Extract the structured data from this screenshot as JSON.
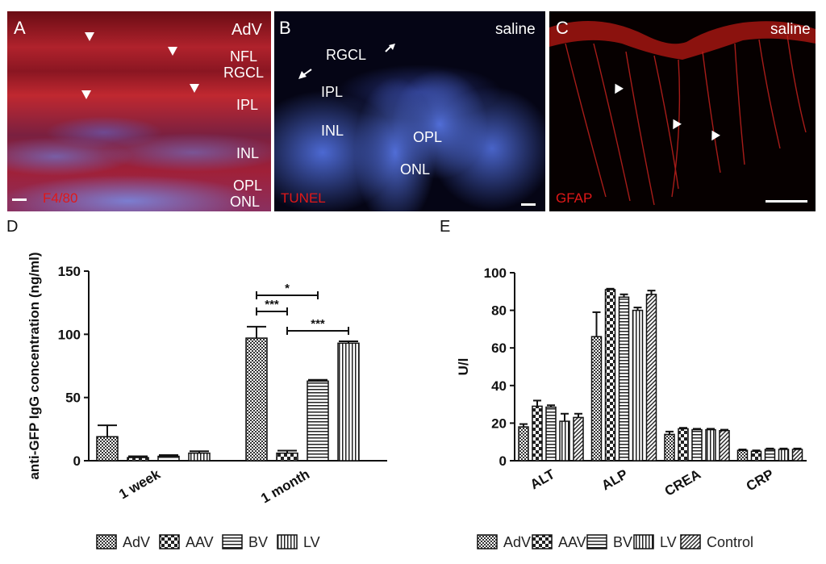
{
  "panels": {
    "a": {
      "letter": "A",
      "corner_label": "AdV",
      "layers": [
        "NFL",
        "RGCL",
        "IPL",
        "INL",
        "OPL",
        "ONL"
      ],
      "stain": "F4/80"
    },
    "b": {
      "letter": "B",
      "corner_label": "saline",
      "layers": [
        "RGCL",
        "IPL",
        "INL",
        "OPL",
        "ONL"
      ],
      "stain": "TUNEL"
    },
    "c": {
      "letter": "C",
      "corner_label": "saline",
      "stain": "GFAP"
    }
  },
  "colors": {
    "tissue_red": "#c8202a",
    "nuclei_blue": "#4a6ad8",
    "background_black": "#050510"
  },
  "chart_data": [
    {
      "id": "D",
      "type": "bar",
      "letter": "D",
      "ylabel": "anti-GFP IgG concentration (ng/ml)",
      "ylim": [
        0,
        150
      ],
      "yticks": [
        0,
        50,
        100,
        150
      ],
      "categories": [
        "1 week",
        "1 month"
      ],
      "series": [
        {
          "name": "AdV",
          "values": [
            19,
            97
          ],
          "errors": [
            9,
            9
          ],
          "pattern": "checker-small"
        },
        {
          "name": "AAV",
          "values": [
            2.5,
            6
          ],
          "errors": [
            1,
            2
          ],
          "pattern": "checker-large"
        },
        {
          "name": "BV",
          "values": [
            3.5,
            63
          ],
          "errors": [
            1,
            1
          ],
          "pattern": "hstripe"
        },
        {
          "name": "LV",
          "values": [
            6,
            93
          ],
          "errors": [
            1.5,
            1.5
          ],
          "pattern": "vstripe"
        }
      ],
      "significance": [
        {
          "label": "*",
          "from": "AdV",
          "to": "BV",
          "category": "1 month"
        },
        {
          "label": "***",
          "from": "AdV",
          "to": "AAV",
          "category": "1 month"
        },
        {
          "label": "***",
          "from": "AAV",
          "to": "LV",
          "category": "1 month"
        }
      ],
      "legend_position": "bottom"
    },
    {
      "id": "E",
      "type": "bar",
      "letter": "E",
      "ylabel": "U/l",
      "ylim": [
        0,
        100
      ],
      "yticks": [
        0,
        20,
        40,
        60,
        80,
        100
      ],
      "categories": [
        "ALT",
        "ALP",
        "CREA",
        "CRP"
      ],
      "series": [
        {
          "name": "AdV",
          "values": [
            18,
            66,
            14,
            5.5
          ],
          "errors": [
            1.5,
            13,
            1.5,
            0.5
          ],
          "pattern": "checker-small"
        },
        {
          "name": "AAV",
          "values": [
            29,
            91,
            17,
            5
          ],
          "errors": [
            3,
            0.5,
            0.5,
            0.5
          ],
          "pattern": "checker-large"
        },
        {
          "name": "BV",
          "values": [
            28.5,
            87,
            16.5,
            6
          ],
          "errors": [
            1,
            1.5,
            0.5,
            0.5
          ],
          "pattern": "hstripe"
        },
        {
          "name": "LV",
          "values": [
            21,
            80,
            16.5,
            6
          ],
          "errors": [
            4,
            1.5,
            0.5,
            0.5
          ],
          "pattern": "vstripe"
        },
        {
          "name": "Control",
          "values": [
            23,
            88.5,
            16,
            6
          ],
          "errors": [
            2,
            2,
            0.5,
            0.5
          ],
          "pattern": "diag"
        }
      ],
      "legend_position": "bottom"
    }
  ]
}
